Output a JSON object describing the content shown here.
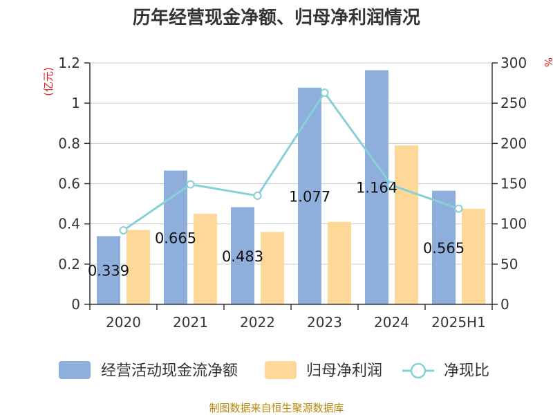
{
  "chart_data": {
    "type": "bar",
    "title": "历年经营现金净额、归母净利润情况",
    "categories": [
      "2020",
      "2021",
      "2022",
      "2023",
      "2024",
      "2025H1"
    ],
    "series": [
      {
        "name": "经营活动现金流净额",
        "type": "bar",
        "axis": "left",
        "color": "#8eaedc",
        "values": [
          0.339,
          0.665,
          0.483,
          1.077,
          1.164,
          0.565
        ],
        "labels": [
          "0.339",
          "0.665",
          "0.483",
          "1.077",
          "1.164",
          "0.565"
        ]
      },
      {
        "name": "归母净利润",
        "type": "bar",
        "axis": "left",
        "color": "#fed899",
        "values": [
          0.37,
          0.45,
          0.36,
          0.41,
          0.79,
          0.475
        ]
      },
      {
        "name": "净现比",
        "type": "line",
        "axis": "right",
        "color": "#86d0d6",
        "values": [
          92,
          149,
          135,
          263,
          148,
          119
        ]
      }
    ],
    "y_left": {
      "unit": "(亿元)",
      "min": 0,
      "max": 1.2,
      "ticks": [
        0,
        0.2,
        0.4,
        0.6,
        0.8,
        1,
        1.2
      ],
      "tick_labels": [
        "0",
        "0.2",
        "0.4",
        "0.6",
        "0.8",
        "1",
        "1.2"
      ]
    },
    "y_right": {
      "unit": "%",
      "min": 0,
      "max": 300,
      "ticks": [
        0,
        50,
        100,
        150,
        200,
        250,
        300
      ],
      "tick_labels": [
        "0",
        "50",
        "100",
        "150",
        "200",
        "250",
        "300"
      ]
    },
    "grid": true,
    "legend_position": "bottom"
  },
  "source": "制图数据来自恒生聚源数据库",
  "colors": {
    "grid": "#cccccc",
    "axis": "#333333",
    "unit": "#e02020",
    "source": "#b8860b"
  }
}
